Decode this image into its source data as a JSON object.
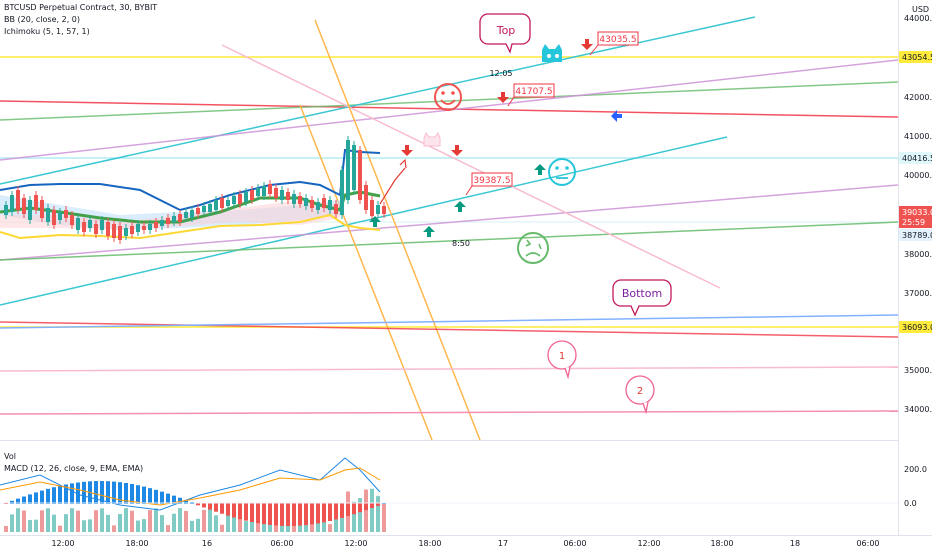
{
  "header": {
    "symbol_line": "BTCUSD Perpetual Contract, 30, BYBIT",
    "bb_line": "BB (20, close, 2, 0)",
    "ichimoku_line": "Ichimoku (5, 1, 57, 1)"
  },
  "sub": {
    "vol_label": "Vol",
    "macd_line": "MACD (12, 26, close, 9, EMA, EMA)",
    "ticks": [
      "200.0",
      "0.0"
    ]
  },
  "axis": {
    "currency": "USD",
    "price_ticks": [
      "44000.0",
      "42000.0",
      "41000.0",
      "40000.0",
      "38000.0",
      "37000.0",
      "35000.0",
      "34000.0"
    ],
    "time_ticks": [
      "12:00",
      "18:00",
      "16",
      "06:00",
      "12:00",
      "18:00",
      "17",
      "06:00",
      "12:00",
      "18:00",
      "18",
      "06:00"
    ]
  },
  "badges": {
    "b43054": "43054.5",
    "b40416": "40416.5",
    "b39033": "39033.0",
    "b39033_sub": "25:59",
    "b38789": "38789.0",
    "b36093": "36093.0"
  },
  "notes": {
    "top": "Top",
    "bottom": "Bottom",
    "one": "1",
    "two": "2",
    "t1205": "12:05",
    "t850": "8:50",
    "p43035": "43035.5",
    "p41707": "41707.5",
    "p39387": "39387.5"
  },
  "chart_data": {
    "type": "candlestick",
    "title": "BTCUSD Perpetual Contract, 30, BYBIT",
    "indicators": [
      "BB (20, close, 2, 0)",
      "Ichimoku (5, 1, 57, 1)",
      "Vol",
      "MACD (12, 26, close, 9, EMA, EMA)"
    ],
    "ylim": [
      33400,
      44300
    ],
    "horizontal_levels": [
      43054.5,
      40416.5,
      36093.0
    ],
    "last_price": 39033.0,
    "countdown": "25:59",
    "ichimoku_level": 38789.0,
    "annotations": [
      "Top",
      "Bottom",
      "1",
      "2",
      "12:05",
      "8:50",
      "43035.5",
      "41707.5",
      "39387.5"
    ],
    "macd_ylim": [
      -100,
      260
    ],
    "colors": {
      "up": "#26a69a",
      "down": "#ef5350",
      "bb": "#2962ff",
      "ichimoku": "#4caf50",
      "level_yellow": "#ffeb3b",
      "trend_cyan": "#3cc8d2"
    }
  }
}
